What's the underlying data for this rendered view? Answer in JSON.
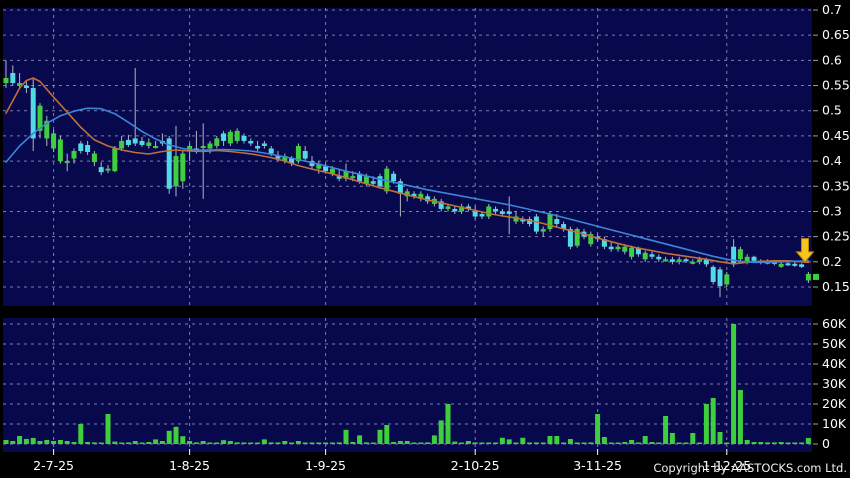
{
  "page": {
    "copyright": "Copyright by AASTOCKS.com Ltd."
  },
  "colors": {
    "background": "#000000",
    "pane_bg": "#08084d",
    "grid": "#9a9ac6",
    "axis_text": "#ffffff",
    "up_candle": "#3ecf3e",
    "down_candle": "#52d9e6",
    "wick": "#b5b5c0",
    "ma_fast": "#c07038",
    "ma_slow": "#3b86d8",
    "volume_bar": "#3ecf3e",
    "arrow_fill": "#f5c51e",
    "arrow_edge": "#c08a00",
    "price_marker": "#3ecf3e",
    "bottom_tick": "#ffffff"
  },
  "chart_data": {
    "type": "candlestick",
    "title": "",
    "legend_position": "none",
    "grid": "dashed",
    "price_axis": {
      "side": "right",
      "ticks": [
        0.7,
        0.65,
        0.6,
        0.55,
        0.5,
        0.45,
        0.4,
        0.35,
        0.3,
        0.25,
        0.2,
        0.15
      ],
      "labels": [
        "0.7",
        "0.65",
        "0.6",
        "0.55",
        "0.5",
        "0.45",
        "0.4",
        "0.35",
        "0.3",
        "0.25",
        "0.2",
        "0.15"
      ],
      "range": [
        0.15,
        0.7
      ]
    },
    "volume_axis": {
      "side": "right",
      "values_k": [
        60,
        50,
        40,
        30,
        20,
        10,
        0
      ],
      "labels": [
        "60K",
        "50K",
        "40K",
        "30K",
        "20K",
        "10K",
        "0"
      ],
      "range_k": [
        0,
        60
      ]
    },
    "x_ticks": [
      {
        "index": 7,
        "label": "2-7-25"
      },
      {
        "index": 27,
        "label": "1-8-25"
      },
      {
        "index": 47,
        "label": "1-9-25"
      },
      {
        "index": 69,
        "label": "2-10-25"
      },
      {
        "index": 87,
        "label": "3-11-25"
      },
      {
        "index": 106,
        "label": "1-12-25"
      }
    ],
    "candles_ohlc": [
      [
        0.555,
        0.6,
        0.545,
        0.565
      ],
      [
        0.575,
        0.59,
        0.55,
        0.555
      ],
      [
        0.555,
        0.575,
        0.545,
        0.555
      ],
      [
        0.55,
        0.56,
        0.535,
        0.545
      ],
      [
        0.545,
        0.565,
        0.42,
        0.445
      ],
      [
        0.46,
        0.515,
        0.445,
        0.51
      ],
      [
        0.445,
        0.49,
        0.43,
        0.48
      ],
      [
        0.425,
        0.462,
        0.418,
        0.455
      ],
      [
        0.4,
        0.45,
        0.395,
        0.443
      ],
      [
        0.4,
        0.415,
        0.38,
        0.4
      ],
      [
        0.405,
        0.425,
        0.395,
        0.42
      ],
      [
        0.435,
        0.44,
        0.415,
        0.42
      ],
      [
        0.432,
        0.44,
        0.412,
        0.418
      ],
      [
        0.398,
        0.42,
        0.39,
        0.415
      ],
      [
        0.388,
        0.398,
        0.372,
        0.378
      ],
      [
        0.385,
        0.392,
        0.376,
        0.385
      ],
      [
        0.38,
        0.43,
        0.378,
        0.425
      ],
      [
        0.425,
        0.45,
        0.42,
        0.44
      ],
      [
        0.442,
        0.452,
        0.428,
        0.432
      ],
      [
        0.445,
        0.585,
        0.43,
        0.435
      ],
      [
        0.44,
        0.448,
        0.428,
        0.432
      ],
      [
        0.43,
        0.445,
        0.425,
        0.437
      ],
      [
        0.43,
        0.44,
        0.425,
        0.43
      ],
      [
        0.44,
        0.455,
        0.43,
        0.435
      ],
      [
        0.445,
        0.45,
        0.335,
        0.345
      ],
      [
        0.35,
        0.47,
        0.33,
        0.41
      ],
      [
        0.36,
        0.42,
        0.345,
        0.415
      ],
      [
        0.42,
        0.435,
        0.4,
        0.43
      ],
      [
        0.425,
        0.46,
        0.415,
        0.42
      ],
      [
        0.43,
        0.475,
        0.325,
        0.43
      ],
      [
        0.425,
        0.44,
        0.415,
        0.435
      ],
      [
        0.43,
        0.45,
        0.425,
        0.445
      ],
      [
        0.455,
        0.46,
        0.43,
        0.44
      ],
      [
        0.435,
        0.462,
        0.43,
        0.458
      ],
      [
        0.44,
        0.465,
        0.435,
        0.46
      ],
      [
        0.45,
        0.455,
        0.435,
        0.44
      ],
      [
        0.44,
        0.445,
        0.43,
        0.435
      ],
      [
        0.43,
        0.44,
        0.42,
        0.425
      ],
      [
        0.435,
        0.44,
        0.425,
        0.43
      ],
      [
        0.425,
        0.43,
        0.41,
        0.415
      ],
      [
        0.41,
        0.42,
        0.4,
        0.405
      ],
      [
        0.4,
        0.415,
        0.395,
        0.41
      ],
      [
        0.405,
        0.41,
        0.39,
        0.395
      ],
      [
        0.4,
        0.435,
        0.395,
        0.43
      ],
      [
        0.42,
        0.43,
        0.4,
        0.405
      ],
      [
        0.4,
        0.41,
        0.385,
        0.39
      ],
      [
        0.385,
        0.4,
        0.375,
        0.395
      ],
      [
        0.39,
        0.395,
        0.375,
        0.38
      ],
      [
        0.375,
        0.39,
        0.37,
        0.385
      ],
      [
        0.37,
        0.385,
        0.36,
        0.365
      ],
      [
        0.365,
        0.395,
        0.36,
        0.38
      ],
      [
        0.37,
        0.38,
        0.36,
        0.37
      ],
      [
        0.375,
        0.38,
        0.355,
        0.36
      ],
      [
        0.355,
        0.375,
        0.35,
        0.37
      ],
      [
        0.36,
        0.37,
        0.35,
        0.355
      ],
      [
        0.37,
        0.375,
        0.345,
        0.35
      ],
      [
        0.34,
        0.39,
        0.335,
        0.385
      ],
      [
        0.375,
        0.38,
        0.355,
        0.36
      ],
      [
        0.36,
        0.365,
        0.29,
        0.335
      ],
      [
        0.33,
        0.345,
        0.32,
        0.34
      ],
      [
        0.335,
        0.34,
        0.325,
        0.33
      ],
      [
        0.325,
        0.34,
        0.32,
        0.335
      ],
      [
        0.33,
        0.335,
        0.315,
        0.32
      ],
      [
        0.315,
        0.33,
        0.31,
        0.325
      ],
      [
        0.32,
        0.325,
        0.3,
        0.305
      ],
      [
        0.305,
        0.315,
        0.3,
        0.31
      ],
      [
        0.305,
        0.31,
        0.295,
        0.3
      ],
      [
        0.3,
        0.315,
        0.295,
        0.31
      ],
      [
        0.31,
        0.315,
        0.3,
        0.305
      ],
      [
        0.3,
        0.31,
        0.285,
        0.29
      ],
      [
        0.295,
        0.3,
        0.285,
        0.29
      ],
      [
        0.29,
        0.315,
        0.285,
        0.31
      ],
      [
        0.305,
        0.31,
        0.295,
        0.3
      ],
      [
        0.3,
        0.305,
        0.29,
        0.295
      ],
      [
        0.3,
        0.33,
        0.255,
        0.295
      ],
      [
        0.28,
        0.3,
        0.275,
        0.29
      ],
      [
        0.285,
        0.29,
        0.275,
        0.28
      ],
      [
        0.285,
        0.29,
        0.27,
        0.275
      ],
      [
        0.29,
        0.295,
        0.255,
        0.26
      ],
      [
        0.26,
        0.27,
        0.25,
        0.265
      ],
      [
        0.265,
        0.3,
        0.26,
        0.295
      ],
      [
        0.285,
        0.295,
        0.27,
        0.275
      ],
      [
        0.275,
        0.28,
        0.26,
        0.265
      ],
      [
        0.265,
        0.27,
        0.225,
        0.23
      ],
      [
        0.232,
        0.268,
        0.228,
        0.265
      ],
      [
        0.26,
        0.265,
        0.245,
        0.25
      ],
      [
        0.235,
        0.26,
        0.23,
        0.255
      ],
      [
        0.25,
        0.255,
        0.24,
        0.245
      ],
      [
        0.245,
        0.25,
        0.225,
        0.23
      ],
      [
        0.23,
        0.24,
        0.22,
        0.225
      ],
      [
        0.225,
        0.235,
        0.22,
        0.23
      ],
      [
        0.22,
        0.235,
        0.215,
        0.23
      ],
      [
        0.21,
        0.232,
        0.205,
        0.228
      ],
      [
        0.228,
        0.23,
        0.21,
        0.215
      ],
      [
        0.205,
        0.222,
        0.2,
        0.218
      ],
      [
        0.215,
        0.22,
        0.205,
        0.21
      ],
      [
        0.21,
        0.215,
        0.2,
        0.205
      ],
      [
        0.205,
        0.21,
        0.2,
        0.205
      ],
      [
        0.205,
        0.21,
        0.195,
        0.2
      ],
      [
        0.2,
        0.21,
        0.195,
        0.205
      ],
      [
        0.205,
        0.208,
        0.198,
        0.202
      ],
      [
        0.2,
        0.205,
        0.195,
        0.2
      ],
      [
        0.2,
        0.21,
        0.195,
        0.205
      ],
      [
        0.205,
        0.208,
        0.19,
        0.195
      ],
      [
        0.19,
        0.193,
        0.155,
        0.16
      ],
      [
        0.185,
        0.19,
        0.13,
        0.152
      ],
      [
        0.155,
        0.18,
        0.15,
        0.175
      ],
      [
        0.23,
        0.245,
        0.19,
        0.195
      ],
      [
        0.205,
        0.23,
        0.2,
        0.225
      ],
      [
        0.2,
        0.215,
        0.195,
        0.21
      ],
      [
        0.21,
        0.212,
        0.198,
        0.202
      ],
      [
        0.202,
        0.205,
        0.195,
        0.2
      ],
      [
        0.2,
        0.205,
        0.195,
        0.2
      ],
      [
        0.2,
        0.202,
        0.193,
        0.197
      ],
      [
        0.19,
        0.2,
        0.188,
        0.196
      ],
      [
        0.197,
        0.2,
        0.192,
        0.195
      ],
      [
        0.196,
        0.2,
        0.19,
        0.194
      ],
      [
        0.195,
        0.197,
        0.188,
        0.19
      ],
      [
        0.163,
        0.18,
        0.158,
        0.176
      ]
    ],
    "volumes_k": [
      2,
      1.5,
      4,
      2.5,
      3,
      1.5,
      2,
      1.5,
      2,
      1.5,
      1,
      10,
      1,
      0.8,
      0.5,
      15,
      1.2,
      0.5,
      0.8,
      1.5,
      0.5,
      1,
      2.3,
      1.5,
      6.6,
      8.6,
      3.9,
      1.5,
      0.8,
      1.5,
      0.5,
      0.5,
      1.9,
      1.5,
      0.8,
      0.5,
      0.5,
      0.6,
      2.3,
      0.8,
      0.8,
      1.5,
      0.5,
      1.5,
      0.3,
      0.5,
      0.4,
      0.5,
      0.6,
      0.8,
      7.1,
      1,
      4.3,
      0.8,
      0.5,
      7.1,
      9.5,
      1,
      1.5,
      1.5,
      0.5,
      0.5,
      0.8,
      4.3,
      11.8,
      20,
      1.2,
      0.5,
      1.5,
      0.8,
      0.5,
      0.5,
      0.5,
      3.1,
      2.3,
      0.5,
      3.1,
      0.5,
      0.8,
      0.5,
      4,
      4,
      0.5,
      2.5,
      0.5,
      0.5,
      0.8,
      15,
      3.5,
      0.5,
      0.5,
      1,
      2,
      0.5,
      4,
      1,
      0.5,
      14,
      5.5,
      0.5,
      0.5,
      5.5,
      0.5,
      20,
      23,
      6,
      0.5,
      60,
      27,
      2,
      1,
      1,
      0.8,
      0.8,
      1,
      0.5,
      0.5,
      0.5,
      3
    ],
    "ma_fast_points": [
      [
        0,
        0.495
      ],
      [
        1,
        0.52
      ],
      [
        2,
        0.545
      ],
      [
        3,
        0.56
      ],
      [
        4,
        0.565
      ],
      [
        5,
        0.558
      ],
      [
        7,
        0.527
      ],
      [
        9,
        0.497
      ],
      [
        11,
        0.467
      ],
      [
        13,
        0.442
      ],
      [
        15,
        0.43
      ],
      [
        17,
        0.422
      ],
      [
        19,
        0.417
      ],
      [
        21,
        0.414
      ],
      [
        23,
        0.419
      ],
      [
        25,
        0.422
      ],
      [
        27,
        0.42
      ],
      [
        29,
        0.419
      ],
      [
        31,
        0.421
      ],
      [
        33,
        0.419
      ],
      [
        35,
        0.416
      ],
      [
        37,
        0.412
      ],
      [
        39,
        0.407
      ],
      [
        41,
        0.4
      ],
      [
        43,
        0.391
      ],
      [
        45,
        0.384
      ],
      [
        47,
        0.378
      ],
      [
        49,
        0.371
      ],
      [
        51,
        0.363
      ],
      [
        53,
        0.355
      ],
      [
        55,
        0.347
      ],
      [
        57,
        0.34
      ],
      [
        59,
        0.333
      ],
      [
        61,
        0.326
      ],
      [
        63,
        0.32
      ],
      [
        65,
        0.314
      ],
      [
        67,
        0.308
      ],
      [
        69,
        0.302
      ],
      [
        71,
        0.296
      ],
      [
        73,
        0.291
      ],
      [
        75,
        0.287
      ],
      [
        77,
        0.282
      ],
      [
        79,
        0.276
      ],
      [
        81,
        0.269
      ],
      [
        83,
        0.262
      ],
      [
        85,
        0.255
      ],
      [
        87,
        0.247
      ],
      [
        89,
        0.24
      ],
      [
        91,
        0.233
      ],
      [
        93,
        0.227
      ],
      [
        95,
        0.222
      ],
      [
        97,
        0.217
      ],
      [
        99,
        0.213
      ],
      [
        101,
        0.209
      ],
      [
        103,
        0.205
      ],
      [
        105,
        0.2
      ],
      [
        107,
        0.196
      ],
      [
        109,
        0.199
      ],
      [
        111,
        0.201
      ],
      [
        113,
        0.202
      ],
      [
        115,
        0.202
      ],
      [
        117,
        0.2
      ],
      [
        118,
        0.199
      ]
    ],
    "ma_slow_points": [
      [
        0,
        0.398
      ],
      [
        2,
        0.43
      ],
      [
        4,
        0.455
      ],
      [
        6,
        0.475
      ],
      [
        8,
        0.49
      ],
      [
        10,
        0.499
      ],
      [
        12,
        0.505
      ],
      [
        14,
        0.504
      ],
      [
        16,
        0.494
      ],
      [
        18,
        0.477
      ],
      [
        20,
        0.459
      ],
      [
        22,
        0.444
      ],
      [
        24,
        0.432
      ],
      [
        26,
        0.425
      ],
      [
        28,
        0.422
      ],
      [
        30,
        0.422
      ],
      [
        32,
        0.423
      ],
      [
        34,
        0.422
      ],
      [
        36,
        0.42
      ],
      [
        38,
        0.416
      ],
      [
        40,
        0.411
      ],
      [
        42,
        0.406
      ],
      [
        44,
        0.4
      ],
      [
        46,
        0.394
      ],
      [
        48,
        0.387
      ],
      [
        50,
        0.38
      ],
      [
        52,
        0.374
      ],
      [
        54,
        0.367
      ],
      [
        56,
        0.361
      ],
      [
        58,
        0.355
      ],
      [
        60,
        0.349
      ],
      [
        62,
        0.343
      ],
      [
        64,
        0.338
      ],
      [
        66,
        0.333
      ],
      [
        68,
        0.328
      ],
      [
        70,
        0.323
      ],
      [
        72,
        0.318
      ],
      [
        74,
        0.313
      ],
      [
        76,
        0.307
      ],
      [
        78,
        0.301
      ],
      [
        80,
        0.295
      ],
      [
        82,
        0.288
      ],
      [
        84,
        0.281
      ],
      [
        86,
        0.274
      ],
      [
        88,
        0.267
      ],
      [
        90,
        0.26
      ],
      [
        92,
        0.253
      ],
      [
        94,
        0.246
      ],
      [
        96,
        0.239
      ],
      [
        98,
        0.232
      ],
      [
        100,
        0.225
      ],
      [
        102,
        0.218
      ],
      [
        104,
        0.211
      ],
      [
        106,
        0.205
      ],
      [
        108,
        0.201
      ],
      [
        110,
        0.199
      ],
      [
        112,
        0.199
      ],
      [
        114,
        0.2
      ],
      [
        116,
        0.201
      ],
      [
        118,
        0.202
      ]
    ],
    "annotations": {
      "down_arrow": {
        "index": 117.5,
        "from_price": 0.246,
        "to_price": 0.2
      },
      "current_price_marker": {
        "price": 0.17
      }
    }
  }
}
